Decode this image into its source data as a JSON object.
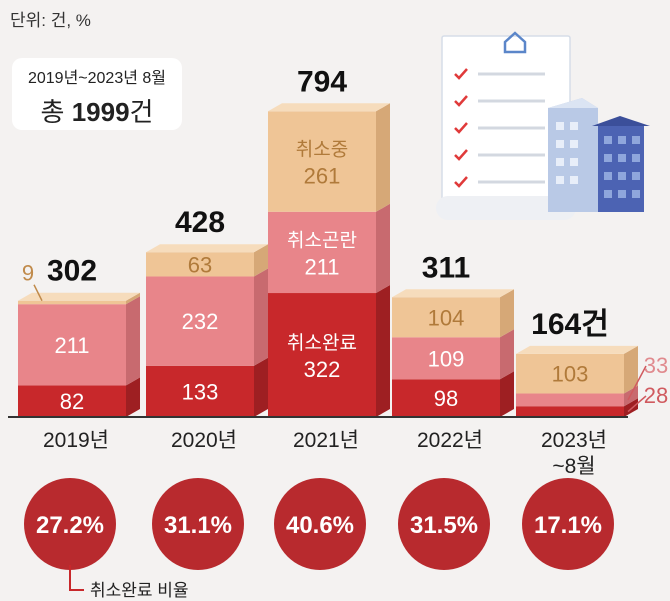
{
  "unit_label": "단위: 건, %",
  "summary": {
    "period": "2019년~2023년 8월",
    "total_prefix": "총",
    "total_value": "1999",
    "total_suffix": "건"
  },
  "legend_label": "취소완료 비율",
  "colors": {
    "completed": "#c8282b",
    "difficult": "#e8858a",
    "in_progress": "#efc596",
    "circle": "#b82a2e",
    "background": "#f4f2f1"
  },
  "chart_data": {
    "type": "bar",
    "stacked": true,
    "categories": [
      "2019년",
      "2020년",
      "2021년",
      "2022년",
      "2023년\n~8월"
    ],
    "series": [
      {
        "name": "취소완료",
        "values": [
          82,
          133,
          322,
          98,
          28
        ]
      },
      {
        "name": "취소곤란",
        "values": [
          211,
          232,
          211,
          109,
          33
        ]
      },
      {
        "name": "취소중",
        "values": [
          9,
          63,
          261,
          104,
          103
        ]
      }
    ],
    "totals": [
      "302",
      "428",
      "794",
      "311",
      "164건"
    ],
    "completion_rates": [
      "27.2%",
      "31.1%",
      "40.6%",
      "31.5%",
      "17.1%"
    ],
    "unit": "건, %"
  }
}
